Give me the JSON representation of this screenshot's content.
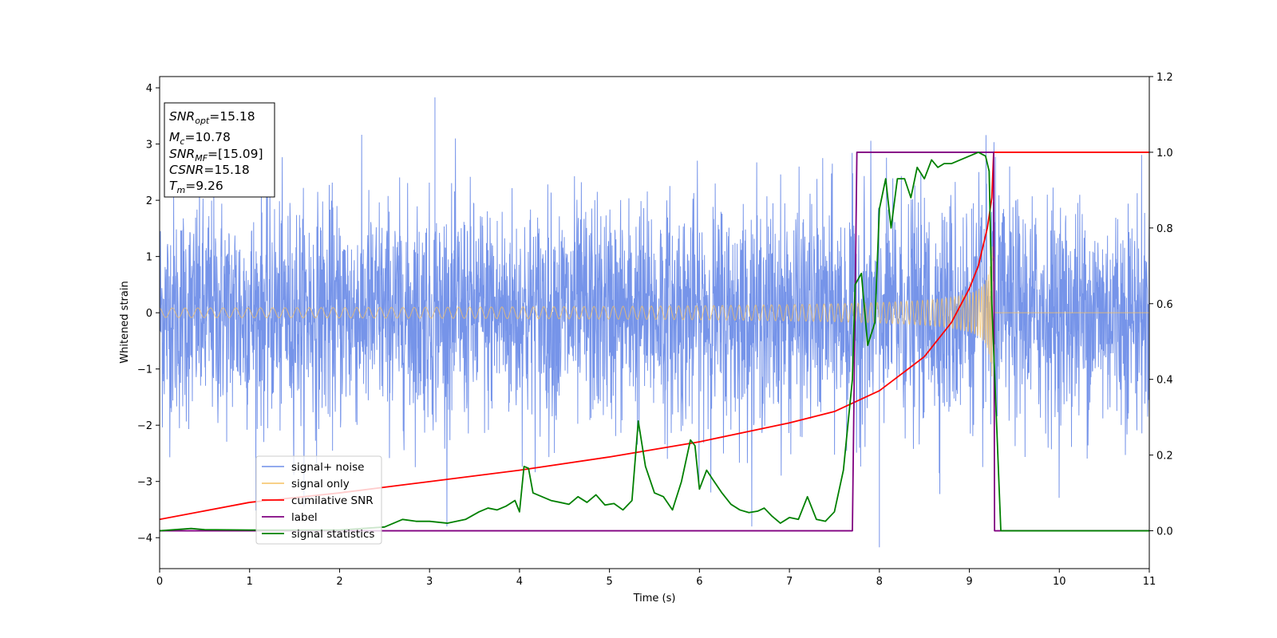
{
  "chart_data": {
    "type": "line",
    "xlabel": "Time (s)",
    "ylabel": "Whitened strain",
    "xlim": [
      0,
      11
    ],
    "ylim": [
      -4.55,
      4.2
    ],
    "y2lim": [
      -0.1,
      1.2
    ],
    "xticks": [
      "0",
      "1",
      "2",
      "3",
      "4",
      "5",
      "6",
      "7",
      "8",
      "9",
      "10",
      "11"
    ],
    "yticks": [
      "4",
      "3",
      "2",
      "1",
      "0",
      "−1",
      "−2",
      "−3",
      "−4"
    ],
    "y2ticks": [
      "1.2",
      "1.0",
      "0.8",
      "0.6",
      "0.4",
      "0.2",
      "0.0"
    ],
    "grid": false,
    "legend_placement": "lower-left",
    "info_box": {
      "snr_opt": "15.18",
      "mc": "10.78",
      "snr_mf": "[15.09]",
      "csnr": "15.18",
      "tm": "9.26"
    },
    "series": [
      {
        "name": "signal+ noise",
        "color": "#6f8ee8",
        "axis": "left",
        "description_envelope": {
          "typical_amplitude": 1.6,
          "max_spikes": [
            [
              3.06,
              3.83
            ],
            [
              8.0,
              -4.17
            ]
          ]
        }
      },
      {
        "name": "signal only",
        "color": "#f5c061",
        "axis": "left",
        "chirp": {
          "start_amplitude": 0.05,
          "peak_time": 9.26,
          "peak_amplitude": 1.25,
          "end_time": 9.28
        }
      },
      {
        "name": "cumilative SNR",
        "color": "#ff0000",
        "axis": "right",
        "x": [
          0,
          1,
          2,
          3,
          4,
          5,
          6,
          7,
          7.5,
          8,
          8.5,
          8.8,
          9.0,
          9.1,
          9.2,
          9.25,
          9.27,
          9.3,
          11
        ],
        "y": [
          0.03,
          0.075,
          0.1,
          0.13,
          0.16,
          0.195,
          0.235,
          0.285,
          0.315,
          0.37,
          0.46,
          0.55,
          0.64,
          0.7,
          0.8,
          0.88,
          1.0,
          1.0,
          1.0
        ]
      },
      {
        "name": "label",
        "color": "#800080",
        "axis": "right",
        "x": [
          0,
          7.7,
          7.75,
          9.26,
          9.27,
          9.28,
          9.3,
          11
        ],
        "y": [
          0,
          0,
          1,
          1,
          1,
          0,
          0,
          0
        ]
      },
      {
        "name": "signal statistics",
        "color": "#008000",
        "axis": "right",
        "x": [
          0,
          0.35,
          0.5,
          1,
          1.5,
          2,
          2.5,
          2.7,
          2.85,
          3.0,
          3.2,
          3.4,
          3.55,
          3.65,
          3.75,
          3.85,
          3.95,
          4.0,
          4.05,
          4.1,
          4.15,
          4.25,
          4.35,
          4.45,
          4.55,
          4.65,
          4.75,
          4.85,
          4.95,
          5.05,
          5.15,
          5.25,
          5.32,
          5.4,
          5.5,
          5.6,
          5.7,
          5.8,
          5.9,
          5.95,
          6.0,
          6.08,
          6.15,
          6.25,
          6.35,
          6.45,
          6.55,
          6.65,
          6.72,
          6.8,
          6.9,
          7.0,
          7.1,
          7.2,
          7.3,
          7.4,
          7.5,
          7.6,
          7.7,
          7.73,
          7.8,
          7.87,
          7.95,
          8.0,
          8.07,
          8.13,
          8.2,
          8.28,
          8.35,
          8.42,
          8.5,
          8.58,
          8.65,
          8.72,
          8.8,
          8.9,
          9.0,
          9.1,
          9.18,
          9.22,
          9.25,
          9.3,
          9.35,
          11
        ],
        "y": [
          0,
          0.006,
          0.003,
          0.002,
          0.002,
          0.002,
          0.01,
          0.03,
          0.025,
          0.025,
          0.02,
          0.03,
          0.05,
          0.06,
          0.055,
          0.065,
          0.08,
          0.05,
          0.17,
          0.165,
          0.1,
          0.09,
          0.08,
          0.075,
          0.07,
          0.09,
          0.075,
          0.095,
          0.068,
          0.072,
          0.055,
          0.08,
          0.29,
          0.17,
          0.1,
          0.09,
          0.055,
          0.13,
          0.24,
          0.225,
          0.11,
          0.16,
          0.135,
          0.1,
          0.07,
          0.055,
          0.048,
          0.052,
          0.06,
          0.04,
          0.02,
          0.035,
          0.03,
          0.09,
          0.03,
          0.025,
          0.05,
          0.16,
          0.4,
          0.65,
          0.68,
          0.49,
          0.55,
          0.85,
          0.93,
          0.8,
          0.93,
          0.93,
          0.88,
          0.96,
          0.93,
          0.98,
          0.96,
          0.97,
          0.97,
          0.98,
          0.99,
          1.0,
          0.99,
          0.95,
          0.6,
          0.3,
          0.0,
          0.0
        ]
      }
    ]
  }
}
